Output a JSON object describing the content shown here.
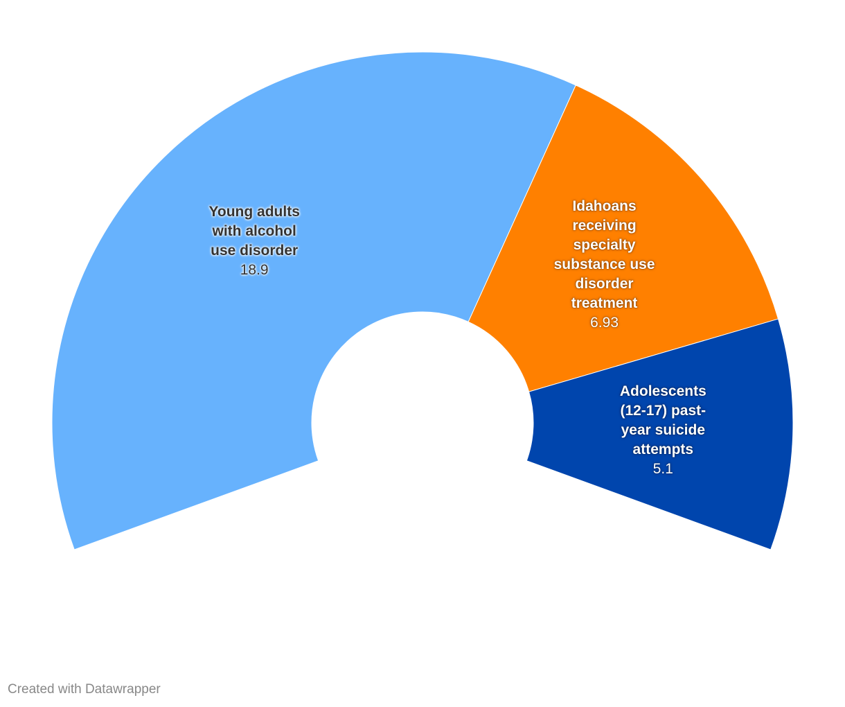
{
  "chart_data": {
    "type": "pie",
    "variant": "half-donut",
    "categories": [
      "Young adults with alcohol use disorder",
      "Idahoans receiving specialty substance use disorder treatment",
      "Adolescents (12-17) past-year suicide attempts"
    ],
    "values": [
      18.9,
      6.93,
      5.1
    ],
    "value_labels": [
      "18.9",
      "6.93",
      "5.1"
    ],
    "colors": [
      "#67b2fd",
      "#ff8000",
      "#0045ad"
    ],
    "label_colors": [
      "dark",
      "light",
      "light"
    ],
    "legend": "none"
  },
  "footer": {
    "credit": "Created with Datawrapper"
  }
}
